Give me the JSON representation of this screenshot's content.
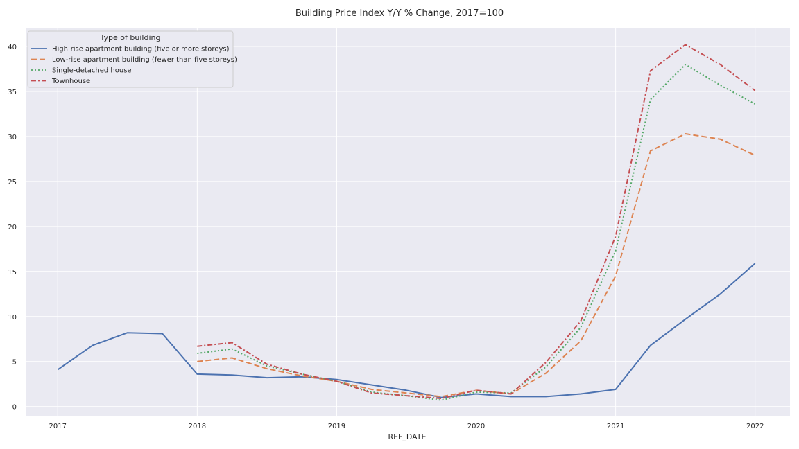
{
  "chart_data": {
    "type": "line",
    "title": "Building Price Index Y/Y % Change, 2017=100",
    "xlabel": "REF_DATE",
    "ylabel": "",
    "xlim": [
      2016.77,
      2022.25
    ],
    "ylim": [
      -1.1,
      42.0
    ],
    "xticks": [
      2017,
      2018,
      2019,
      2020,
      2021,
      2022
    ],
    "xtick_labels": [
      "2017",
      "2018",
      "2019",
      "2020",
      "2021",
      "2022"
    ],
    "yticks": [
      0,
      5,
      10,
      15,
      20,
      25,
      30,
      35,
      40
    ],
    "ytick_labels": [
      "0",
      "5",
      "10",
      "15",
      "20",
      "25",
      "30",
      "35",
      "40"
    ],
    "grid": true,
    "background": "#eaeaf2",
    "legend": {
      "title": "Type of building",
      "placement": "top-left"
    },
    "series": [
      {
        "name": "High-rise apartment building (five or more storeys)",
        "color": "#4c72b0",
        "dash": "solid",
        "points": [
          [
            2017.0,
            4.1
          ],
          [
            2017.25,
            6.8
          ],
          [
            2017.5,
            8.2
          ],
          [
            2017.75,
            8.1
          ],
          [
            2018.0,
            3.6
          ],
          [
            2018.25,
            3.5
          ],
          [
            2018.5,
            3.2
          ],
          [
            2018.75,
            3.3
          ],
          [
            2019.0,
            3.0
          ],
          [
            2019.25,
            2.4
          ],
          [
            2019.5,
            1.8
          ],
          [
            2019.75,
            1.0
          ],
          [
            2020.0,
            1.4
          ],
          [
            2020.25,
            1.1
          ],
          [
            2020.5,
            1.1
          ],
          [
            2020.75,
            1.4
          ],
          [
            2021.0,
            1.9
          ],
          [
            2021.25,
            6.8
          ],
          [
            2021.5,
            9.7
          ],
          [
            2021.75,
            12.5
          ],
          [
            2022.0,
            15.9
          ]
        ]
      },
      {
        "name": "Low-rise apartment building (fewer than five storeys)",
        "color": "#dd8452",
        "dash": "dashed",
        "points": [
          [
            2018.0,
            5.0
          ],
          [
            2018.25,
            5.4
          ],
          [
            2018.5,
            4.2
          ],
          [
            2018.75,
            3.4
          ],
          [
            2019.0,
            2.8
          ],
          [
            2019.25,
            1.9
          ],
          [
            2019.5,
            1.5
          ],
          [
            2019.75,
            1.1
          ],
          [
            2020.0,
            1.8
          ],
          [
            2020.25,
            1.4
          ],
          [
            2020.5,
            3.7
          ],
          [
            2020.75,
            7.3
          ],
          [
            2021.0,
            14.5
          ],
          [
            2021.25,
            28.4
          ],
          [
            2021.5,
            30.3
          ],
          [
            2021.75,
            29.7
          ],
          [
            2022.0,
            27.9
          ]
        ]
      },
      {
        "name": "Single-detached house",
        "color": "#55a868",
        "dash": "dotted",
        "points": [
          [
            2018.0,
            5.9
          ],
          [
            2018.25,
            6.4
          ],
          [
            2018.5,
            4.5
          ],
          [
            2018.75,
            3.6
          ],
          [
            2019.0,
            2.8
          ],
          [
            2019.25,
            1.6
          ],
          [
            2019.5,
            1.2
          ],
          [
            2019.75,
            0.7
          ],
          [
            2020.0,
            1.6
          ],
          [
            2020.25,
            1.5
          ],
          [
            2020.5,
            4.4
          ],
          [
            2020.75,
            8.8
          ],
          [
            2021.0,
            17.3
          ],
          [
            2021.25,
            34.1
          ],
          [
            2021.5,
            38.0
          ],
          [
            2021.75,
            35.7
          ],
          [
            2022.0,
            33.6
          ]
        ]
      },
      {
        "name": "Townhouse",
        "color": "#c44e52",
        "dash": "dashdot",
        "points": [
          [
            2018.0,
            6.7
          ],
          [
            2018.25,
            7.1
          ],
          [
            2018.5,
            4.7
          ],
          [
            2018.75,
            3.6
          ],
          [
            2019.0,
            2.8
          ],
          [
            2019.25,
            1.5
          ],
          [
            2019.5,
            1.2
          ],
          [
            2019.75,
            0.9
          ],
          [
            2020.0,
            1.8
          ],
          [
            2020.25,
            1.4
          ],
          [
            2020.5,
            4.9
          ],
          [
            2020.75,
            9.5
          ],
          [
            2021.0,
            18.9
          ],
          [
            2021.25,
            37.3
          ],
          [
            2021.5,
            40.2
          ],
          [
            2021.75,
            38.0
          ],
          [
            2022.0,
            35.1
          ]
        ]
      }
    ]
  }
}
